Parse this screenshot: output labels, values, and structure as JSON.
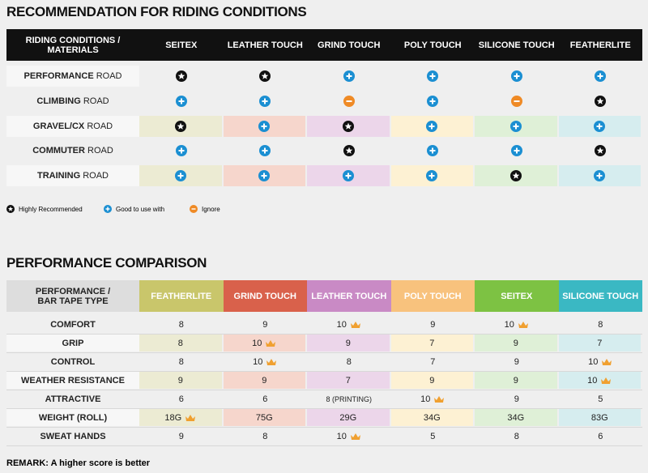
{
  "section1": {
    "title": "RECOMMENDATION FOR RIDING CONDITIONS",
    "corner_header": "RIDING CONDITIONS / MATERIALS",
    "columns": [
      "SEITEX",
      "LEATHER TOUCH",
      "GRIND TOUCH",
      "POLY TOUCH",
      "SILICONE TOUCH",
      "FEATHERLITE"
    ],
    "rows": [
      {
        "condition": "PERFORMANCE",
        "suffix": "ROAD"
      },
      {
        "condition": "CLIMBING",
        "suffix": "ROAD"
      },
      {
        "condition": "GRAVEL/CX",
        "suffix": "ROAD"
      },
      {
        "condition": "COMMUTER",
        "suffix": "ROAD"
      },
      {
        "condition": "TRAINING",
        "suffix": "ROAD"
      }
    ]
  },
  "legend": [
    "Highly Recommended",
    "Good to use with",
    "Ignore"
  ],
  "section2": {
    "title": "PERFORMANCE COMPARISON",
    "corner_header": "PERFORMANCE / BAR TAPE TYPE",
    "columns": [
      "FEATHERLITE",
      "GRIND TOUCH",
      "LEATHER TOUCH",
      "POLY TOUCH",
      "SEITEX",
      "SILICONE TOUCH"
    ],
    "rows": [
      {
        "label": "COMFORT",
        "values": [
          8,
          9,
          10,
          9,
          10,
          8
        ]
      },
      {
        "label": "GRIP",
        "values": [
          8,
          10,
          9,
          7,
          9,
          7
        ]
      },
      {
        "label": "CONTROL",
        "values": [
          8,
          10,
          8,
          7,
          9,
          10
        ]
      },
      {
        "label": "WEATHER RESISTANCE",
        "values": [
          9,
          9,
          7,
          9,
          9,
          10
        ]
      },
      {
        "label": "ATTRACTIVE",
        "values": [
          6,
          6,
          "8 (PRINTING)",
          10,
          9,
          5
        ]
      },
      {
        "label": "WEIGHT (ROLL)",
        "values": [
          "18G",
          "75G",
          "29G",
          "34G",
          "34G",
          "83G"
        ]
      },
      {
        "label": "SWEAT HANDS",
        "values": [
          9,
          8,
          10,
          5,
          8,
          6
        ]
      }
    ]
  },
  "remark": "REMARK: A higher score is better"
}
